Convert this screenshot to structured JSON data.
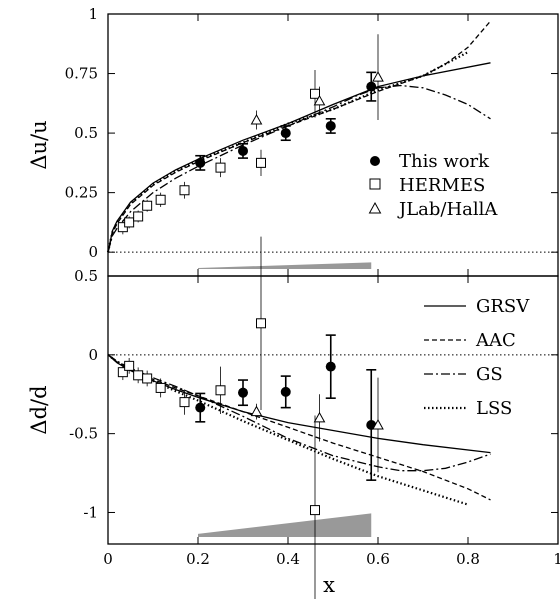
{
  "chart_data": [
    {
      "type": "scatter",
      "panel": "top",
      "title": "",
      "xlabel": "",
      "ylabel": "Δu/u",
      "xlim": [
        0,
        1
      ],
      "ylim": [
        -0.1,
        1
      ],
      "y_ticks": [
        "0",
        "0.25",
        "0.5",
        "0.75",
        "1"
      ],
      "reference_line_y": 0,
      "legend": {
        "placement": "center-right",
        "entries": [
          "This work",
          "HERMES",
          "JLab/HallA"
        ]
      },
      "series": [
        {
          "name": "This work",
          "marker": "filled-circle",
          "points": [
            {
              "x": 0.205,
              "y": 0.375,
              "err": 0.03
            },
            {
              "x": 0.3,
              "y": 0.425,
              "err": 0.03
            },
            {
              "x": 0.395,
              "y": 0.5,
              "err": 0.03
            },
            {
              "x": 0.495,
              "y": 0.53,
              "err": 0.03
            },
            {
              "x": 0.585,
              "y": 0.695,
              "err": 0.06
            }
          ]
        },
        {
          "name": "HERMES",
          "marker": "open-square",
          "points": [
            {
              "x": 0.033,
              "y": 0.105,
              "err": 0.03
            },
            {
              "x": 0.047,
              "y": 0.125,
              "err": 0.025
            },
            {
              "x": 0.067,
              "y": 0.15,
              "err": 0.025
            },
            {
              "x": 0.087,
              "y": 0.195,
              "err": 0.025
            },
            {
              "x": 0.117,
              "y": 0.22,
              "err": 0.03
            },
            {
              "x": 0.17,
              "y": 0.26,
              "err": 0.035
            },
            {
              "x": 0.25,
              "y": 0.355,
              "err": 0.04
            },
            {
              "x": 0.34,
              "y": 0.375,
              "err": 0.055
            },
            {
              "x": 0.46,
              "y": 0.665,
              "err": 0.1
            }
          ]
        },
        {
          "name": "JLab/HallA",
          "marker": "open-triangle",
          "points": [
            {
              "x": 0.33,
              "y": 0.555,
              "err": 0.04
            },
            {
              "x": 0.47,
              "y": 0.635,
              "err": 0.06
            },
            {
              "x": 0.6,
              "y": 0.735,
              "err": 0.18
            }
          ]
        }
      ],
      "curves": [
        {
          "style": "solid",
          "x": [
            0.0,
            0.01,
            0.02,
            0.05,
            0.1,
            0.15,
            0.2,
            0.3,
            0.4,
            0.5,
            0.6,
            0.7,
            0.85
          ],
          "y": [
            0.0,
            0.09,
            0.13,
            0.21,
            0.29,
            0.345,
            0.39,
            0.47,
            0.54,
            0.62,
            0.695,
            0.74,
            0.795
          ]
        },
        {
          "style": "dashed",
          "x": [
            0.0,
            0.01,
            0.02,
            0.05,
            0.1,
            0.15,
            0.2,
            0.3,
            0.4,
            0.5,
            0.6,
            0.7,
            0.75,
            0.8,
            0.85
          ],
          "y": [
            0.0,
            0.08,
            0.12,
            0.2,
            0.28,
            0.335,
            0.38,
            0.46,
            0.53,
            0.6,
            0.675,
            0.74,
            0.79,
            0.86,
            0.97
          ]
        },
        {
          "style": "dash-dot",
          "x": [
            0.0,
            0.01,
            0.02,
            0.05,
            0.1,
            0.15,
            0.2,
            0.3,
            0.4,
            0.5,
            0.55,
            0.6,
            0.65,
            0.7,
            0.75,
            0.8,
            0.85
          ],
          "y": [
            0.0,
            0.07,
            0.1,
            0.17,
            0.25,
            0.31,
            0.36,
            0.45,
            0.53,
            0.61,
            0.655,
            0.69,
            0.7,
            0.69,
            0.66,
            0.62,
            0.56
          ]
        },
        {
          "style": "dotted",
          "x": [
            0.0,
            0.01,
            0.02,
            0.05,
            0.1,
            0.15,
            0.2,
            0.3,
            0.4,
            0.5,
            0.6,
            0.7,
            0.8
          ],
          "y": [
            0.0,
            0.085,
            0.125,
            0.205,
            0.285,
            0.34,
            0.385,
            0.46,
            0.54,
            0.6,
            0.68,
            0.74,
            0.84
          ]
        }
      ],
      "systematic_band": {
        "x": [
          0.2,
          0.585
        ],
        "height": [
          0.004,
          0.028
        ]
      }
    },
    {
      "type": "scatter",
      "panel": "bottom",
      "title": "",
      "xlabel": "x",
      "ylabel": "Δd/d",
      "xlim": [
        0,
        1
      ],
      "ylim": [
        -1.2,
        0.5
      ],
      "x_ticks": [
        "0",
        "0.2",
        "0.4",
        "0.6",
        "0.8",
        "1"
      ],
      "y_ticks": [
        "-1",
        "-0.5",
        "0",
        "0.5"
      ],
      "reference_line_y": 0,
      "legend": {
        "placement": "top-right",
        "entries": [
          "GRSV",
          "AAC",
          "GS",
          "LSS"
        ]
      },
      "series": [
        {
          "name": "This work",
          "marker": "filled-circle",
          "points": [
            {
              "x": 0.205,
              "y": -0.335,
              "err": 0.09
            },
            {
              "x": 0.3,
              "y": -0.24,
              "err": 0.08
            },
            {
              "x": 0.395,
              "y": -0.235,
              "err": 0.1
            },
            {
              "x": 0.495,
              "y": -0.075,
              "err": 0.2
            },
            {
              "x": 0.585,
              "y": -0.445,
              "err": 0.35
            }
          ]
        },
        {
          "name": "HERMES",
          "marker": "open-square",
          "points": [
            {
              "x": 0.033,
              "y": -0.11,
              "err": 0.05
            },
            {
              "x": 0.047,
              "y": -0.07,
              "err": 0.05
            },
            {
              "x": 0.067,
              "y": -0.13,
              "err": 0.05
            },
            {
              "x": 0.087,
              "y": -0.15,
              "err": 0.05
            },
            {
              "x": 0.117,
              "y": -0.21,
              "err": 0.06
            },
            {
              "x": 0.17,
              "y": -0.3,
              "err": 0.08
            },
            {
              "x": 0.25,
              "y": -0.225,
              "err": 0.15
            },
            {
              "x": 0.34,
              "y": 0.2,
              "err": 0.55
            },
            {
              "x": 0.46,
              "y": -0.985,
              "err": 0.6
            }
          ]
        },
        {
          "name": "JLab/HallA",
          "marker": "open-triangle",
          "points": [
            {
              "x": 0.33,
              "y": -0.36,
              "err": 0.05
            },
            {
              "x": 0.47,
              "y": -0.4,
              "err": 0.15
            },
            {
              "x": 0.6,
              "y": -0.445,
              "err": 0.3
            }
          ]
        }
      ],
      "curves": [
        {
          "name": "GRSV",
          "style": "solid",
          "x": [
            0.0,
            0.02,
            0.05,
            0.1,
            0.15,
            0.2,
            0.3,
            0.4,
            0.5,
            0.6,
            0.7,
            0.85
          ],
          "y": [
            0.0,
            -0.05,
            -0.1,
            -0.165,
            -0.22,
            -0.27,
            -0.36,
            -0.43,
            -0.48,
            -0.53,
            -0.57,
            -0.62
          ]
        },
        {
          "name": "AAC",
          "style": "dashed",
          "x": [
            0.0,
            0.02,
            0.05,
            0.1,
            0.15,
            0.2,
            0.3,
            0.4,
            0.5,
            0.6,
            0.7,
            0.8,
            0.85
          ],
          "y": [
            0.0,
            -0.045,
            -0.09,
            -0.155,
            -0.21,
            -0.26,
            -0.36,
            -0.46,
            -0.56,
            -0.65,
            -0.74,
            -0.85,
            -0.92
          ]
        },
        {
          "name": "GS",
          "style": "dash-dot",
          "x": [
            0.0,
            0.02,
            0.05,
            0.1,
            0.15,
            0.2,
            0.3,
            0.4,
            0.5,
            0.6,
            0.65,
            0.7,
            0.75,
            0.8,
            0.85
          ],
          "y": [
            0.0,
            -0.04,
            -0.085,
            -0.145,
            -0.2,
            -0.26,
            -0.39,
            -0.53,
            -0.64,
            -0.71,
            -0.735,
            -0.735,
            -0.72,
            -0.68,
            -0.63
          ]
        },
        {
          "name": "LSS",
          "style": "dotted",
          "x": [
            0.0,
            0.02,
            0.05,
            0.1,
            0.15,
            0.2,
            0.3,
            0.4,
            0.5,
            0.6,
            0.7,
            0.8
          ],
          "y": [
            0.0,
            -0.045,
            -0.095,
            -0.165,
            -0.23,
            -0.29,
            -0.42,
            -0.54,
            -0.66,
            -0.77,
            -0.86,
            -0.95
          ]
        }
      ],
      "systematic_band": {
        "x": [
          0.2,
          0.585
        ],
        "height": [
          0.02,
          0.15
        ]
      }
    }
  ]
}
